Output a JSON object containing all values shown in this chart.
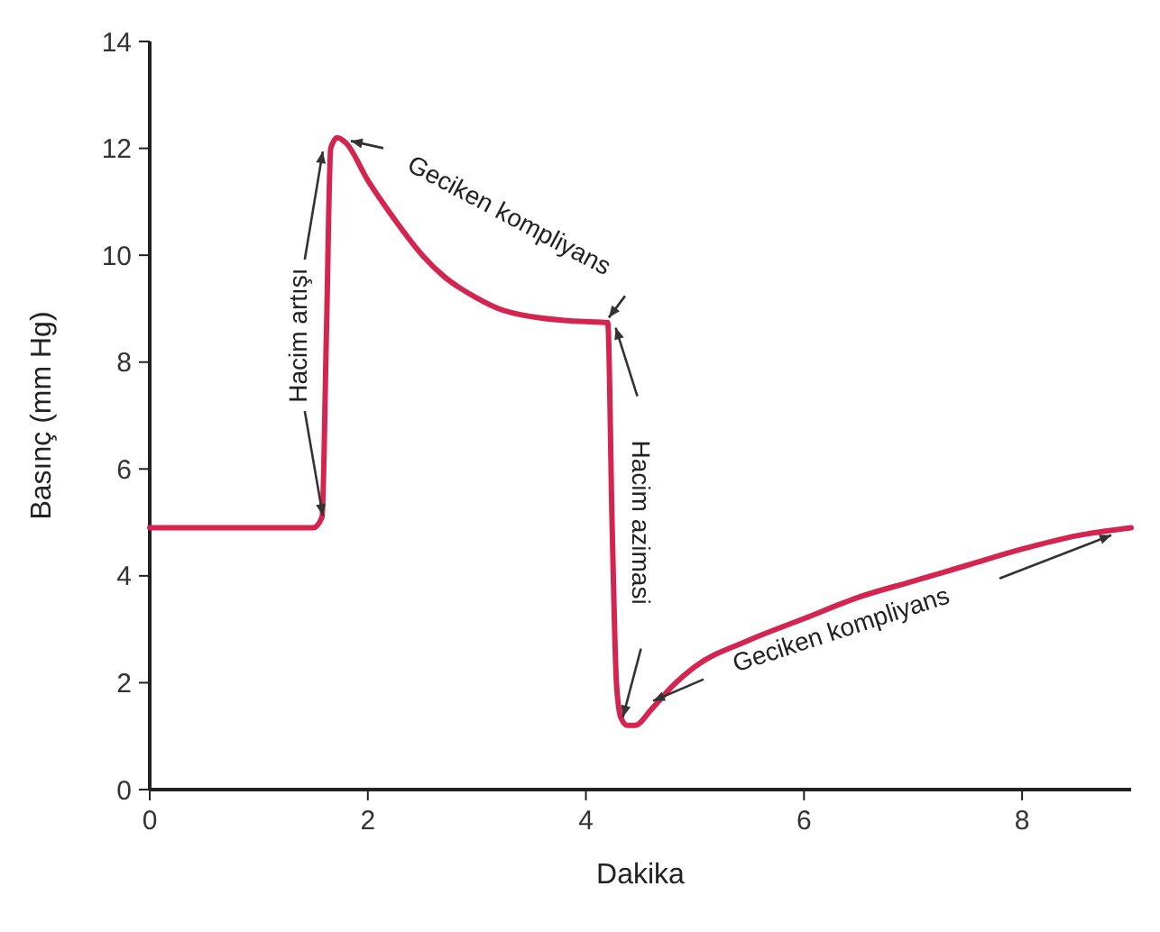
{
  "chart_data": {
    "type": "line",
    "xlabel": "Dakika",
    "ylabel": "Basınç (mm Hg)",
    "xlim": [
      0,
      9
    ],
    "xticks": [
      0,
      2,
      4,
      6,
      8
    ],
    "ylim": [
      0,
      14
    ],
    "yticks": [
      0,
      2,
      4,
      6,
      8,
      10,
      12,
      14
    ],
    "grid": false,
    "marker": "none",
    "line_style": "solid",
    "series": [
      {
        "color": "#d42450",
        "x": [
          0,
          1.5,
          1.58,
          1.62,
          1.66,
          1.72,
          1.8,
          2.0,
          2.2,
          2.5,
          2.7,
          3.0,
          3.2,
          3.5,
          3.8,
          4.1,
          4.2,
          4.24,
          4.28,
          4.32,
          4.38,
          4.45,
          4.6,
          4.8,
          5.0,
          5.5,
          6.0,
          6.5,
          7.0,
          7.5,
          8.0,
          8.5,
          9.0
        ],
        "values": [
          4.9,
          4.9,
          5.1,
          8.5,
          12.0,
          12.2,
          12.1,
          11.4,
          10.8,
          10.0,
          9.6,
          9.2,
          9.0,
          8.85,
          8.78,
          8.75,
          8.74,
          5.0,
          2.0,
          1.35,
          1.2,
          1.2,
          1.5,
          1.95,
          2.3,
          2.8,
          3.2,
          3.6,
          3.9,
          4.2,
          4.5,
          4.75,
          4.9
        ]
      }
    ],
    "annotations": [
      {
        "text": "Hacim artışı",
        "x": 1.62,
        "y": 8.5
      },
      {
        "text": "Geciken kompliyans",
        "x": 3.3,
        "y": 8.9
      },
      {
        "text": "Hacim azimasi",
        "x": 4.24,
        "y": 5
      },
      {
        "text": "Geciken kompliyans",
        "x": 6.8,
        "y": 3.75
      }
    ]
  }
}
